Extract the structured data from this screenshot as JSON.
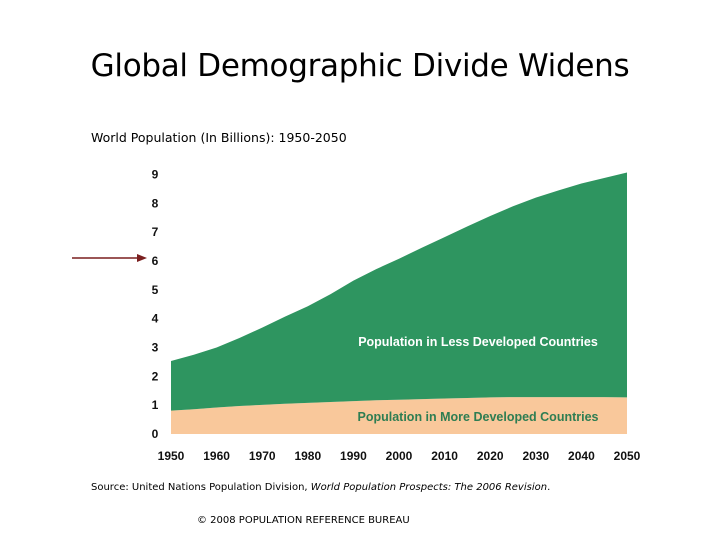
{
  "page": {
    "title": "Global Demographic Divide Widens",
    "source_prefix": "Source: United Nations Population Division, ",
    "source_italic": "World Population Prospects: The 2006 Revision",
    "source_suffix": ".",
    "copyright": "© 2008 POPULATION REFERENCE BUREAU"
  },
  "chart_data": {
    "type": "area",
    "stacked": true,
    "subtitle": "World Population (In Billions): 1950-2050",
    "x": [
      1950,
      1955,
      1960,
      1965,
      1970,
      1975,
      1980,
      1985,
      1990,
      1995,
      2000,
      2005,
      2010,
      2015,
      2020,
      2025,
      2030,
      2035,
      2040,
      2045,
      2050
    ],
    "series": [
      {
        "name": "Population in More Developed Countries",
        "color": "#f9c89b",
        "values": [
          0.81,
          0.86,
          0.92,
          0.97,
          1.01,
          1.05,
          1.08,
          1.11,
          1.14,
          1.17,
          1.19,
          1.21,
          1.23,
          1.25,
          1.27,
          1.28,
          1.28,
          1.28,
          1.28,
          1.28,
          1.27
        ]
      },
      {
        "name": "Population in Less Developed Countries",
        "color": "#2e9560",
        "values": [
          1.72,
          1.89,
          2.08,
          2.36,
          2.68,
          3.02,
          3.35,
          3.74,
          4.18,
          4.55,
          4.89,
          5.25,
          5.6,
          5.95,
          6.29,
          6.62,
          6.92,
          7.17,
          7.41,
          7.6,
          7.8
        ]
      }
    ],
    "x_ticks": [
      "1950",
      "1960",
      "1970",
      "1980",
      "1990",
      "2000",
      "2010",
      "2020",
      "2030",
      "2040",
      "2050"
    ],
    "y_ticks": [
      "0",
      "1",
      "2",
      "3",
      "4",
      "5",
      "6",
      "7",
      "8",
      "9"
    ],
    "xlim": [
      1950,
      2050
    ],
    "ylim": [
      0,
      9.4
    ],
    "grid": false,
    "annotation": {
      "type": "arrow",
      "points_to_y": 6
    }
  }
}
